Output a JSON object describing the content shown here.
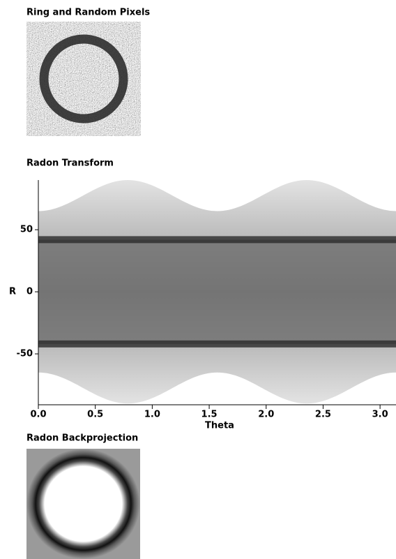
{
  "panels": [
    {
      "title": "Ring and Random Pixels"
    },
    {
      "title": "Radon Transform",
      "xlabel": "Theta",
      "ylabel": "R",
      "xlim": [
        0,
        3.14
      ],
      "ylim": [
        -91,
        90
      ],
      "xticks": [
        {
          "value": 0,
          "label": "0.0"
        },
        0.5,
        {
          "value": 1,
          "label": "1.0"
        },
        1.5,
        {
          "value": 2,
          "label": "2.0"
        },
        2.5,
        {
          "value": 3,
          "label": "3.0"
        }
      ],
      "yticks": [
        -50,
        0,
        50
      ]
    },
    {
      "title": "Radon Backprojection"
    }
  ]
}
